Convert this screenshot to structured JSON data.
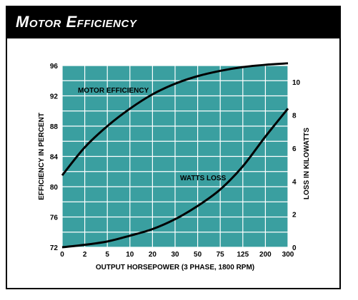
{
  "header": {
    "title": "Motor Efficiency"
  },
  "colors": {
    "plot_bg": "#3a9fa0",
    "grid": "#ffffff",
    "curve": "#000000",
    "header_bg": "#000000"
  },
  "chart_data": {
    "type": "line",
    "title": "Motor Efficiency",
    "xlabel": "OUTPUT HORSEPOWER (3 PHASE, 1800 RPM)",
    "ylabel_left": "EFFICIENCY IN PERCENT",
    "ylabel_right": "LOSS IN KILOWATTS",
    "x_categories": [
      "0",
      "2",
      "5",
      "10",
      "20",
      "30",
      "50",
      "75",
      "125",
      "200",
      "300"
    ],
    "y_left_ticks": [
      "72",
      "76",
      "80",
      "84",
      "88",
      "92",
      "96"
    ],
    "y_left_range": [
      72,
      96
    ],
    "y_right_ticks": [
      "0",
      "2",
      "4",
      "6",
      "8",
      "10"
    ],
    "y_right_range": [
      0,
      11
    ],
    "grid": true,
    "series": [
      {
        "name": "MOTOR EFFICIENCY",
        "axis": "left",
        "values": [
          81.5,
          85.2,
          88.0,
          90.3,
          92.2,
          93.6,
          94.6,
          95.3,
          95.8,
          96.1,
          96.3
        ]
      },
      {
        "name": "WATTS LOSS",
        "axis": "right",
        "values": [
          0.0,
          0.15,
          0.35,
          0.7,
          1.1,
          1.7,
          2.5,
          3.5,
          4.9,
          6.7,
          8.4
        ]
      }
    ]
  }
}
